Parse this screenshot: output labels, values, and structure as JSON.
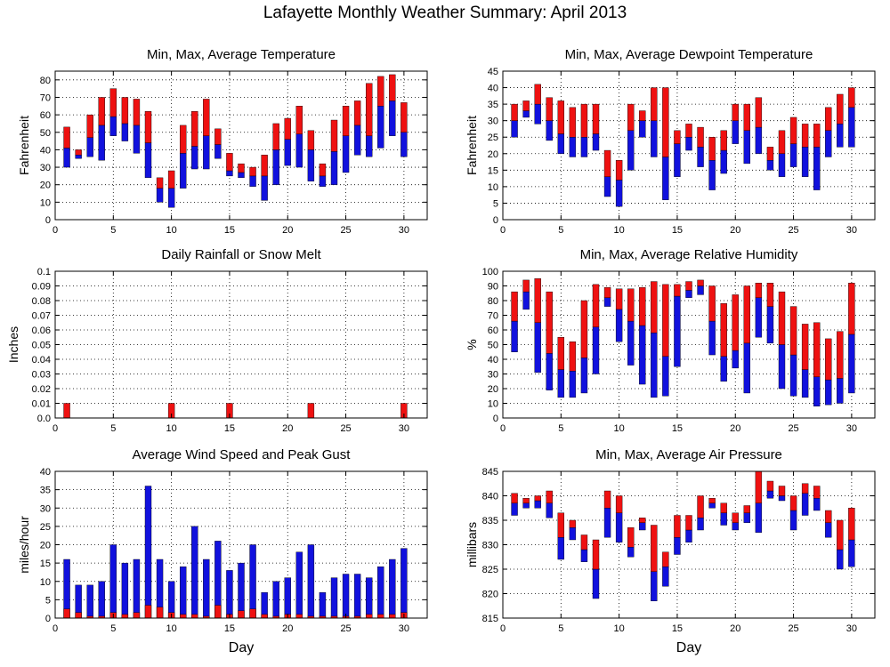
{
  "title": "Lafayette Monthly Weather Summary: April 2013",
  "colors": {
    "high": "#ee1111",
    "low": "#1111dd",
    "frame": "#000000",
    "grid": "#000000"
  },
  "chart_data": [
    {
      "id": "temperature",
      "type": "bar",
      "subtype": "floating-range",
      "title": "Min, Max, Average Temperature",
      "xlabel": "",
      "ylabel": "Fahrenheit",
      "xlim": [
        0,
        32
      ],
      "ylim": [
        0,
        85
      ],
      "xticks": [
        0,
        5,
        10,
        15,
        20,
        25,
        30
      ],
      "yticks": [
        0,
        10,
        20,
        30,
        40,
        50,
        60,
        70,
        80
      ],
      "grid": true,
      "days": [
        1,
        2,
        3,
        4,
        5,
        6,
        7,
        8,
        9,
        10,
        11,
        12,
        13,
        14,
        15,
        16,
        17,
        18,
        19,
        20,
        21,
        22,
        23,
        24,
        25,
        26,
        27,
        28,
        29,
        30
      ],
      "min": [
        30,
        35,
        36,
        34,
        48,
        45,
        38,
        24,
        10,
        7,
        18,
        29,
        29,
        35,
        25,
        24,
        19,
        11,
        20,
        31,
        30,
        22,
        19,
        20,
        27,
        37,
        36,
        41,
        48,
        36
      ],
      "avg": [
        41,
        37,
        47,
        54,
        59,
        55,
        54,
        44,
        18,
        18,
        38,
        42,
        48,
        43,
        28,
        27,
        25,
        25,
        40,
        46,
        49,
        40,
        25,
        39,
        48,
        54,
        48,
        65,
        68,
        50
      ],
      "max": [
        53,
        40,
        60,
        70,
        75,
        70,
        69,
        62,
        24,
        28,
        54,
        62,
        69,
        52,
        38,
        32,
        30,
        37,
        55,
        58,
        65,
        51,
        32,
        57,
        65,
        68,
        78,
        82,
        83,
        67
      ]
    },
    {
      "id": "dewpoint",
      "type": "bar",
      "subtype": "floating-range",
      "title": "Min, Max, Average Dewpoint Temperature",
      "xlabel": "",
      "ylabel": "Fahrenheit",
      "xlim": [
        0,
        32
      ],
      "ylim": [
        0,
        45
      ],
      "xticks": [
        0,
        5,
        10,
        15,
        20,
        25,
        30
      ],
      "yticks": [
        0,
        5,
        10,
        15,
        20,
        25,
        30,
        35,
        40,
        45
      ],
      "grid": true,
      "days": [
        1,
        2,
        3,
        4,
        5,
        6,
        7,
        8,
        9,
        10,
        11,
        12,
        13,
        14,
        15,
        16,
        17,
        18,
        19,
        20,
        21,
        22,
        23,
        24,
        25,
        26,
        27,
        28,
        29,
        30
      ],
      "min": [
        25,
        31,
        29,
        24,
        20,
        19,
        19,
        21,
        7,
        4,
        15,
        25,
        19,
        6,
        13,
        21,
        16,
        9,
        14,
        23,
        17,
        20,
        15,
        13,
        16,
        13,
        9,
        19,
        22,
        22
      ],
      "avg": [
        30,
        33,
        35,
        30,
        26,
        25,
        25,
        26,
        13,
        12,
        27,
        30,
        30,
        19,
        23,
        25,
        22,
        18,
        21,
        30,
        27,
        28,
        18,
        20,
        23,
        22,
        22,
        27,
        29,
        34
      ],
      "max": [
        35,
        36,
        41,
        37,
        36,
        34,
        35,
        35,
        21,
        18,
        35,
        33,
        40,
        40,
        27,
        29,
        28,
        25,
        27,
        35,
        35,
        37,
        22,
        27,
        31,
        29,
        29,
        34,
        38,
        40
      ]
    },
    {
      "id": "rainfall",
      "type": "bar",
      "title": "Daily Rainfall or Snow Melt",
      "xlabel": "",
      "ylabel": "Inches",
      "xlim": [
        0,
        32
      ],
      "ylim": [
        0,
        0.1
      ],
      "xticks": [
        0,
        5,
        10,
        15,
        20,
        25,
        30
      ],
      "yticks": [
        0,
        0.01,
        0.02,
        0.03,
        0.04,
        0.05,
        0.06,
        0.07,
        0.08,
        0.09,
        0.1
      ],
      "ytick_labels": [
        "0.0",
        "0.01",
        "0.02",
        "0.03",
        "0.04",
        "0.05",
        "0.06",
        "0.07",
        "0.08",
        "0.09",
        "0.1"
      ],
      "grid": true,
      "days": [
        1,
        2,
        3,
        4,
        5,
        6,
        7,
        8,
        9,
        10,
        11,
        12,
        13,
        14,
        15,
        16,
        17,
        18,
        19,
        20,
        21,
        22,
        23,
        24,
        25,
        26,
        27,
        28,
        29,
        30
      ],
      "values": [
        0.01,
        0,
        0,
        0,
        0,
        0,
        0,
        0,
        0,
        0.01,
        0,
        0,
        0,
        0,
        0.01,
        0,
        0,
        0,
        0,
        0,
        0,
        0.01,
        0,
        0,
        0,
        0,
        0,
        0,
        0,
        0.01
      ]
    },
    {
      "id": "humidity",
      "type": "bar",
      "subtype": "floating-range",
      "title": "Min, Max, Average Relative Humidity",
      "xlabel": "",
      "ylabel": "%",
      "xlim": [
        0,
        32
      ],
      "ylim": [
        0,
        100
      ],
      "xticks": [
        0,
        5,
        10,
        15,
        20,
        25,
        30
      ],
      "yticks": [
        0,
        10,
        20,
        30,
        40,
        50,
        60,
        70,
        80,
        90,
        100
      ],
      "grid": true,
      "days": [
        1,
        2,
        3,
        4,
        5,
        6,
        7,
        8,
        9,
        10,
        11,
        12,
        13,
        14,
        15,
        16,
        17,
        18,
        19,
        20,
        21,
        22,
        23,
        24,
        25,
        26,
        27,
        28,
        29,
        30
      ],
      "min": [
        45,
        74,
        31,
        19,
        14,
        14,
        17,
        30,
        76,
        52,
        36,
        23,
        14,
        15,
        35,
        82,
        84,
        43,
        25,
        34,
        17,
        55,
        51,
        20,
        15,
        14,
        8,
        9,
        10,
        17
      ],
      "avg": [
        66,
        86,
        65,
        44,
        33,
        32,
        41,
        62,
        82,
        74,
        66,
        63,
        58,
        42,
        83,
        87,
        90,
        66,
        42,
        46,
        51,
        82,
        76,
        50,
        43,
        33,
        28,
        26,
        27,
        57
      ],
      "max": [
        86,
        94,
        95,
        86,
        55,
        52,
        80,
        91,
        89,
        88,
        88,
        89,
        93,
        91,
        91,
        93,
        94,
        90,
        78,
        84,
        90,
        92,
        92,
        86,
        76,
        64,
        65,
        54,
        59,
        92
      ]
    },
    {
      "id": "wind",
      "type": "bar",
      "subtype": "overlaid",
      "title": "Average Wind Speed and Peak Gust",
      "xlabel": "Day",
      "ylabel": "miles/hour",
      "xlim": [
        0,
        32
      ],
      "ylim": [
        0,
        40
      ],
      "xticks": [
        0,
        5,
        10,
        15,
        20,
        25,
        30
      ],
      "yticks": [
        0,
        5,
        10,
        15,
        20,
        25,
        30,
        35,
        40
      ],
      "grid": true,
      "days": [
        1,
        2,
        3,
        4,
        5,
        6,
        7,
        8,
        9,
        10,
        11,
        12,
        13,
        14,
        15,
        16,
        17,
        18,
        19,
        20,
        21,
        22,
        23,
        24,
        25,
        26,
        27,
        28,
        29,
        30
      ],
      "average": [
        2.5,
        1.5,
        0.5,
        0.5,
        1.5,
        1,
        1.5,
        3.5,
        3,
        1.5,
        1,
        1,
        0.5,
        3.5,
        1,
        2,
        2.5,
        1,
        0.5,
        1,
        1,
        0.5,
        0.5,
        0.5,
        0.5,
        0.5,
        1,
        1,
        1,
        1.5
      ],
      "peak_gust": [
        16,
        9,
        9,
        10,
        20,
        15,
        16,
        36,
        16,
        10,
        14,
        25,
        16,
        21,
        13,
        15,
        20,
        7,
        10,
        11,
        18,
        20,
        7,
        11,
        12,
        12,
        11,
        14,
        16,
        19
      ]
    },
    {
      "id": "pressure",
      "type": "bar",
      "subtype": "floating-range",
      "title": "Min, Max, Average Air Pressure",
      "xlabel": "Day",
      "ylabel": "millibars",
      "xlim": [
        0,
        32
      ],
      "ylim": [
        815,
        845
      ],
      "xticks": [
        0,
        5,
        10,
        15,
        20,
        25,
        30
      ],
      "yticks": [
        815,
        820,
        825,
        830,
        835,
        840,
        845
      ],
      "grid": true,
      "days": [
        1,
        2,
        3,
        4,
        5,
        6,
        7,
        8,
        9,
        10,
        11,
        12,
        13,
        14,
        15,
        16,
        17,
        18,
        19,
        20,
        21,
        22,
        23,
        24,
        25,
        26,
        27,
        28,
        29,
        30
      ],
      "min": [
        836,
        837.5,
        837.5,
        835.5,
        827,
        831,
        826.5,
        819,
        831.5,
        830.5,
        827.5,
        833,
        818.5,
        821.5,
        828,
        830.5,
        833,
        837.5,
        834,
        833,
        834.5,
        832.5,
        839.5,
        839,
        833,
        836,
        837,
        831.5,
        825,
        825.5
      ],
      "avg": [
        838.5,
        838.5,
        839,
        838.5,
        831.5,
        833.5,
        829,
        825,
        837.5,
        836.5,
        829.5,
        834.5,
        824.5,
        825.5,
        831.5,
        833,
        835.5,
        838.5,
        836.5,
        834.5,
        836.5,
        838.5,
        841,
        840,
        837,
        840.5,
        839.5,
        834.5,
        829,
        831
      ],
      "max": [
        840.5,
        839.5,
        840,
        841,
        836.5,
        835,
        832,
        831,
        841,
        840,
        833.5,
        835.5,
        834,
        828.5,
        836,
        836,
        840,
        839.5,
        838.5,
        836.5,
        838,
        845,
        843,
        842,
        840,
        842.5,
        842,
        837,
        835,
        837.5
      ]
    }
  ]
}
